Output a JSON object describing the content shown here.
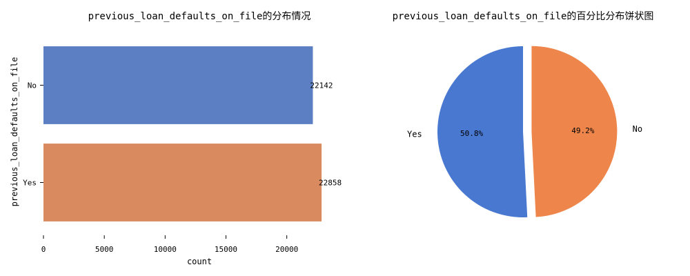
{
  "chart_data": [
    {
      "type": "bar",
      "orientation": "horizontal",
      "title": "previous_loan_defaults_on_file的分布情况",
      "xlabel": "count",
      "ylabel": "previous_loan_defaults_on_file",
      "categories": [
        "No",
        "Yes"
      ],
      "values": [
        22142,
        22858
      ],
      "data_labels": [
        "22142",
        "22858"
      ],
      "xlim": [
        0,
        24500
      ],
      "xticks": [
        0,
        5000,
        10000,
        15000,
        20000
      ],
      "xtick_labels": [
        "0",
        "5000",
        "10000",
        "15000",
        "20000"
      ],
      "colors": [
        "#5b7fc2",
        "#d98b5f"
      ],
      "grid": false
    },
    {
      "type": "pie",
      "title": "previous_loan_defaults_on_file的百分比分布饼状图",
      "labels": [
        "Yes",
        "No"
      ],
      "values": [
        50.8,
        49.2
      ],
      "pct_labels": [
        "50.8%",
        "49.2%"
      ],
      "colors": [
        "#4878d0",
        "#ee854a"
      ],
      "explode": [
        0,
        0.1
      ],
      "start_angle_deg": 90
    }
  ]
}
